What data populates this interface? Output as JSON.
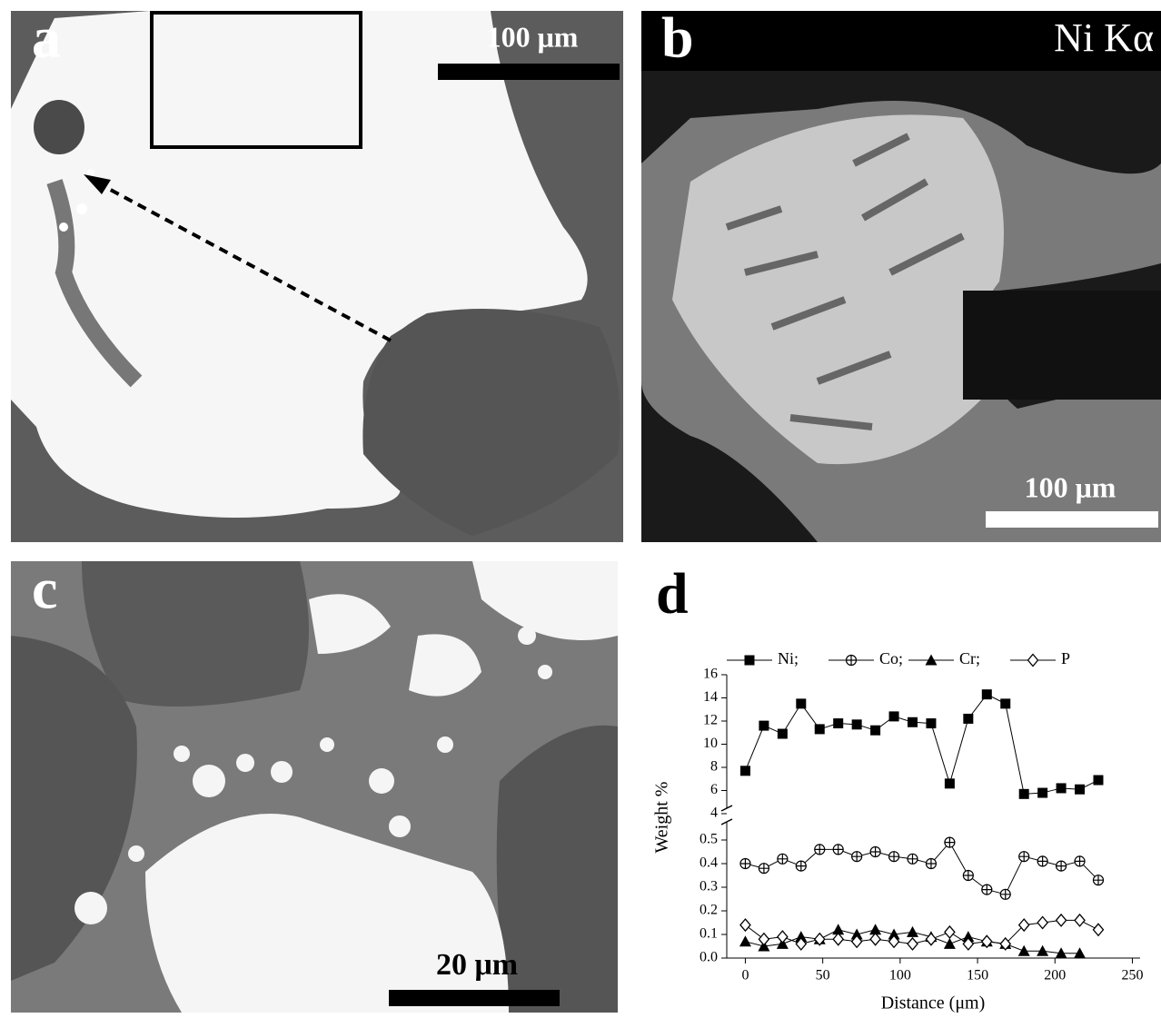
{
  "panels": [
    {
      "label": "a",
      "scale_bar": "100 μm"
    },
    {
      "label": "b",
      "title": "Ni Kα",
      "scale_bar": "100 μm"
    },
    {
      "label": "c",
      "scale_bar": "20 μm"
    }
  ],
  "chart_data": {
    "type": "line",
    "label": "d",
    "x_label": "Distance (μm)",
    "y_label": "Weight %",
    "x": [
      0,
      12,
      24,
      36,
      48,
      60,
      72,
      84,
      96,
      108,
      120,
      132,
      144,
      156,
      168,
      180,
      192,
      204,
      216,
      228
    ],
    "xlim": [
      -12,
      255
    ],
    "xticks": [
      0,
      50,
      100,
      150,
      200,
      250
    ],
    "ylim": [
      0,
      16
    ],
    "ybreak": [
      0.5,
      4
    ],
    "yticks": [
      {
        "value": 0,
        "label": "0.0"
      },
      0.1,
      0.2,
      0.3,
      0.4,
      0.5,
      4,
      6,
      8,
      10,
      12,
      14,
      16
    ],
    "series": [
      {
        "name": "Ni;",
        "color": "#000000",
        "marker": "square",
        "values": [
          7.7,
          11.6,
          10.9,
          13.5,
          11.3,
          11.8,
          11.7,
          11.2,
          12.4,
          11.9,
          11.8,
          6.6,
          12.2,
          14.3,
          13.5,
          5.7,
          5.8,
          6.2,
          6.1,
          6.9
        ]
      },
      {
        "name": "Co;",
        "color": "#000000",
        "marker": "circle-plus",
        "values": [
          0.4,
          0.38,
          0.42,
          0.39,
          0.46,
          0.46,
          0.43,
          0.45,
          0.43,
          0.42,
          0.4,
          0.49,
          0.35,
          0.29,
          0.27,
          0.43,
          0.41,
          0.39,
          0.41,
          0.33
        ]
      },
      {
        "name": "Cr;",
        "color": "#000000",
        "marker": "triangle",
        "values": [
          0.07,
          0.05,
          0.06,
          0.09,
          0.08,
          0.12,
          0.1,
          0.12,
          0.1,
          0.11,
          0.09,
          0.06,
          0.09,
          0.07,
          0.06,
          0.03,
          0.03,
          0.02,
          0.02,
          null
        ]
      },
      {
        "name": "P",
        "color": "#000000",
        "marker": "diamond",
        "values": [
          0.14,
          0.08,
          0.09,
          0.06,
          0.08,
          0.08,
          0.07,
          0.08,
          0.07,
          0.06,
          0.08,
          0.11,
          0.06,
          0.07,
          0.06,
          0.14,
          0.15,
          0.16,
          0.16,
          0.12
        ]
      }
    ]
  }
}
